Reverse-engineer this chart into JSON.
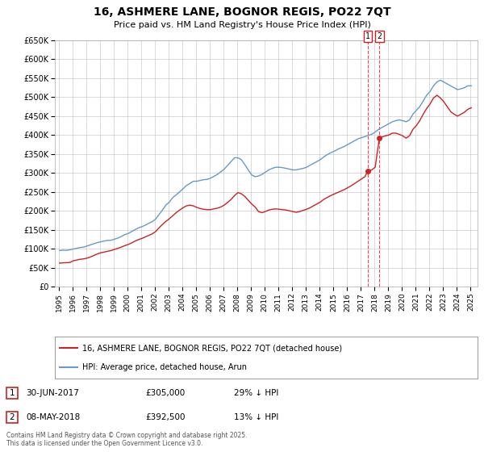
{
  "title": "16, ASHMERE LANE, BOGNOR REGIS, PO22 7QT",
  "subtitle": "Price paid vs. HM Land Registry's House Price Index (HPI)",
  "ylim": [
    0,
    650000
  ],
  "yticks": [
    0,
    50000,
    100000,
    150000,
    200000,
    250000,
    300000,
    350000,
    400000,
    450000,
    500000,
    550000,
    600000,
    650000
  ],
  "ytick_labels": [
    "£0",
    "£50K",
    "£100K",
    "£150K",
    "£200K",
    "£250K",
    "£300K",
    "£350K",
    "£400K",
    "£450K",
    "£500K",
    "£550K",
    "£600K",
    "£650K"
  ],
  "xlim_start": 1994.7,
  "xlim_end": 2025.5,
  "xticks": [
    1995,
    1996,
    1997,
    1998,
    1999,
    2000,
    2001,
    2002,
    2003,
    2004,
    2005,
    2006,
    2007,
    2008,
    2009,
    2010,
    2011,
    2012,
    2013,
    2014,
    2015,
    2016,
    2017,
    2018,
    2019,
    2020,
    2021,
    2022,
    2023,
    2024,
    2025
  ],
  "hpi_color": "#6699cc",
  "price_color": "#cc2222",
  "marker_color": "#cc2222",
  "vline_color": "#ee3333",
  "background_color": "#ffffff",
  "grid_color": "#cccccc",
  "legend_label_price": "16, ASHMERE LANE, BOGNOR REGIS, PO22 7QT (detached house)",
  "legend_label_hpi": "HPI: Average price, detached house, Arun",
  "footer": "Contains HM Land Registry data © Crown copyright and database right 2025.\nThis data is licensed under the Open Government Licence v3.0.",
  "hpi_data": [
    [
      1995.04,
      95000
    ],
    [
      1995.29,
      96000
    ],
    [
      1995.54,
      95500
    ],
    [
      1995.79,
      97000
    ],
    [
      1996.04,
      99000
    ],
    [
      1996.29,
      101000
    ],
    [
      1996.54,
      103000
    ],
    [
      1996.79,
      104000
    ],
    [
      1997.04,
      107000
    ],
    [
      1997.29,
      110000
    ],
    [
      1997.54,
      113000
    ],
    [
      1997.79,
      116000
    ],
    [
      1998.04,
      118000
    ],
    [
      1998.29,
      120000
    ],
    [
      1998.54,
      122000
    ],
    [
      1998.79,
      122000
    ],
    [
      1999.04,
      125000
    ],
    [
      1999.29,
      128000
    ],
    [
      1999.54,
      132000
    ],
    [
      1999.79,
      137000
    ],
    [
      2000.04,
      140000
    ],
    [
      2000.29,
      145000
    ],
    [
      2000.54,
      150000
    ],
    [
      2000.79,
      155000
    ],
    [
      2001.04,
      158000
    ],
    [
      2001.29,
      162000
    ],
    [
      2001.54,
      167000
    ],
    [
      2001.79,
      171000
    ],
    [
      2002.04,
      178000
    ],
    [
      2002.29,
      190000
    ],
    [
      2002.54,
      202000
    ],
    [
      2002.79,
      215000
    ],
    [
      2003.04,
      223000
    ],
    [
      2003.29,
      235000
    ],
    [
      2003.54,
      242000
    ],
    [
      2003.79,
      250000
    ],
    [
      2004.04,
      258000
    ],
    [
      2004.29,
      267000
    ],
    [
      2004.54,
      272000
    ],
    [
      2004.79,
      278000
    ],
    [
      2005.04,
      278000
    ],
    [
      2005.29,
      280000
    ],
    [
      2005.54,
      282000
    ],
    [
      2005.79,
      283000
    ],
    [
      2006.04,
      286000
    ],
    [
      2006.29,
      291000
    ],
    [
      2006.54,
      296000
    ],
    [
      2006.79,
      303000
    ],
    [
      2007.04,
      310000
    ],
    [
      2007.29,
      320000
    ],
    [
      2007.54,
      330000
    ],
    [
      2007.79,
      340000
    ],
    [
      2008.04,
      340000
    ],
    [
      2008.29,
      335000
    ],
    [
      2008.54,
      322000
    ],
    [
      2008.79,
      308000
    ],
    [
      2009.04,
      295000
    ],
    [
      2009.29,
      290000
    ],
    [
      2009.54,
      292000
    ],
    [
      2009.79,
      296000
    ],
    [
      2010.04,
      302000
    ],
    [
      2010.29,
      308000
    ],
    [
      2010.54,
      312000
    ],
    [
      2010.79,
      315000
    ],
    [
      2011.04,
      315000
    ],
    [
      2011.29,
      314000
    ],
    [
      2011.54,
      312000
    ],
    [
      2011.79,
      310000
    ],
    [
      2012.04,
      308000
    ],
    [
      2012.29,
      308000
    ],
    [
      2012.54,
      310000
    ],
    [
      2012.79,
      312000
    ],
    [
      2013.04,
      315000
    ],
    [
      2013.29,
      320000
    ],
    [
      2013.54,
      325000
    ],
    [
      2013.79,
      330000
    ],
    [
      2014.04,
      335000
    ],
    [
      2014.29,
      342000
    ],
    [
      2014.54,
      348000
    ],
    [
      2014.79,
      353000
    ],
    [
      2015.04,
      357000
    ],
    [
      2015.29,
      362000
    ],
    [
      2015.54,
      366000
    ],
    [
      2015.79,
      370000
    ],
    [
      2016.04,
      375000
    ],
    [
      2016.29,
      380000
    ],
    [
      2016.54,
      385000
    ],
    [
      2016.79,
      390000
    ],
    [
      2017.04,
      393000
    ],
    [
      2017.29,
      396000
    ],
    [
      2017.54,
      399000
    ],
    [
      2017.79,
      402000
    ],
    [
      2018.04,
      408000
    ],
    [
      2018.29,
      415000
    ],
    [
      2018.54,
      420000
    ],
    [
      2018.79,
      425000
    ],
    [
      2019.04,
      430000
    ],
    [
      2019.29,
      435000
    ],
    [
      2019.54,
      438000
    ],
    [
      2019.79,
      440000
    ],
    [
      2020.04,
      438000
    ],
    [
      2020.29,
      435000
    ],
    [
      2020.54,
      440000
    ],
    [
      2020.79,
      455000
    ],
    [
      2021.04,
      465000
    ],
    [
      2021.29,
      475000
    ],
    [
      2021.54,
      490000
    ],
    [
      2021.79,
      505000
    ],
    [
      2022.04,
      515000
    ],
    [
      2022.29,
      530000
    ],
    [
      2022.54,
      540000
    ],
    [
      2022.79,
      545000
    ],
    [
      2023.04,
      540000
    ],
    [
      2023.29,
      535000
    ],
    [
      2023.54,
      530000
    ],
    [
      2023.79,
      525000
    ],
    [
      2024.04,
      520000
    ],
    [
      2024.29,
      522000
    ],
    [
      2024.54,
      525000
    ],
    [
      2024.79,
      530000
    ],
    [
      2025.04,
      530000
    ]
  ],
  "price_data": [
    [
      1995.04,
      62000
    ],
    [
      1995.29,
      62500
    ],
    [
      1995.54,
      63000
    ],
    [
      1995.79,
      63500
    ],
    [
      1996.04,
      68000
    ],
    [
      1996.29,
      70000
    ],
    [
      1996.54,
      72000
    ],
    [
      1996.79,
      73000
    ],
    [
      1997.04,
      75000
    ],
    [
      1997.29,
      78000
    ],
    [
      1997.54,
      82000
    ],
    [
      1997.79,
      86000
    ],
    [
      1998.04,
      89000
    ],
    [
      1998.29,
      91000
    ],
    [
      1998.54,
      93000
    ],
    [
      1998.79,
      95000
    ],
    [
      1999.04,
      98000
    ],
    [
      1999.29,
      101000
    ],
    [
      1999.54,
      104000
    ],
    [
      1999.79,
      108000
    ],
    [
      2000.04,
      111000
    ],
    [
      2000.29,
      115000
    ],
    [
      2000.54,
      120000
    ],
    [
      2000.79,
      124000
    ],
    [
      2001.04,
      127000
    ],
    [
      2001.29,
      131000
    ],
    [
      2001.54,
      135000
    ],
    [
      2001.79,
      139000
    ],
    [
      2002.04,
      145000
    ],
    [
      2002.29,
      155000
    ],
    [
      2002.54,
      164000
    ],
    [
      2002.79,
      172000
    ],
    [
      2003.04,
      179000
    ],
    [
      2003.29,
      187000
    ],
    [
      2003.54,
      195000
    ],
    [
      2003.79,
      202000
    ],
    [
      2004.04,
      208000
    ],
    [
      2004.29,
      213000
    ],
    [
      2004.54,
      215000
    ],
    [
      2004.79,
      213000
    ],
    [
      2005.04,
      209000
    ],
    [
      2005.29,
      206000
    ],
    [
      2005.54,
      204000
    ],
    [
      2005.79,
      203000
    ],
    [
      2006.04,
      203000
    ],
    [
      2006.29,
      205000
    ],
    [
      2006.54,
      207000
    ],
    [
      2006.79,
      210000
    ],
    [
      2007.04,
      215000
    ],
    [
      2007.29,
      222000
    ],
    [
      2007.54,
      230000
    ],
    [
      2007.79,
      240000
    ],
    [
      2008.04,
      248000
    ],
    [
      2008.29,
      245000
    ],
    [
      2008.54,
      238000
    ],
    [
      2008.79,
      228000
    ],
    [
      2009.04,
      218000
    ],
    [
      2009.29,
      210000
    ],
    [
      2009.54,
      198000
    ],
    [
      2009.79,
      195000
    ],
    [
      2010.04,
      198000
    ],
    [
      2010.29,
      202000
    ],
    [
      2010.54,
      204000
    ],
    [
      2010.79,
      205000
    ],
    [
      2011.04,
      204000
    ],
    [
      2011.29,
      203000
    ],
    [
      2011.54,
      202000
    ],
    [
      2011.79,
      200000
    ],
    [
      2012.04,
      198000
    ],
    [
      2012.29,
      196000
    ],
    [
      2012.54,
      198000
    ],
    [
      2012.79,
      201000
    ],
    [
      2013.04,
      204000
    ],
    [
      2013.29,
      208000
    ],
    [
      2013.54,
      213000
    ],
    [
      2013.79,
      218000
    ],
    [
      2014.04,
      223000
    ],
    [
      2014.29,
      230000
    ],
    [
      2014.54,
      235000
    ],
    [
      2014.79,
      240000
    ],
    [
      2015.04,
      244000
    ],
    [
      2015.29,
      248000
    ],
    [
      2015.54,
      252000
    ],
    [
      2015.79,
      256000
    ],
    [
      2016.04,
      261000
    ],
    [
      2016.29,
      266000
    ],
    [
      2016.54,
      272000
    ],
    [
      2016.79,
      278000
    ],
    [
      2017.04,
      284000
    ],
    [
      2017.29,
      290000
    ],
    [
      2017.5,
      305000
    ],
    [
      2017.79,
      308000
    ],
    [
      2018.04,
      315000
    ],
    [
      2018.35,
      392500
    ],
    [
      2018.54,
      395000
    ],
    [
      2018.79,
      398000
    ],
    [
      2019.04,
      400000
    ],
    [
      2019.29,
      405000
    ],
    [
      2019.54,
      405000
    ],
    [
      2019.79,
      402000
    ],
    [
      2020.04,
      398000
    ],
    [
      2020.29,
      392000
    ],
    [
      2020.54,
      398000
    ],
    [
      2020.79,
      415000
    ],
    [
      2021.04,
      425000
    ],
    [
      2021.29,
      438000
    ],
    [
      2021.54,
      455000
    ],
    [
      2021.79,
      470000
    ],
    [
      2022.04,
      482000
    ],
    [
      2022.29,
      498000
    ],
    [
      2022.54,
      505000
    ],
    [
      2022.79,
      498000
    ],
    [
      2023.04,
      488000
    ],
    [
      2023.29,
      475000
    ],
    [
      2023.54,
      462000
    ],
    [
      2023.79,
      455000
    ],
    [
      2024.04,
      450000
    ],
    [
      2024.29,
      455000
    ],
    [
      2024.54,
      460000
    ],
    [
      2024.79,
      468000
    ],
    [
      2025.04,
      472000
    ]
  ],
  "sale1_x": 2017.5,
  "sale1_y": 305000,
  "sale2_x": 2018.35,
  "sale2_y": 392500
}
